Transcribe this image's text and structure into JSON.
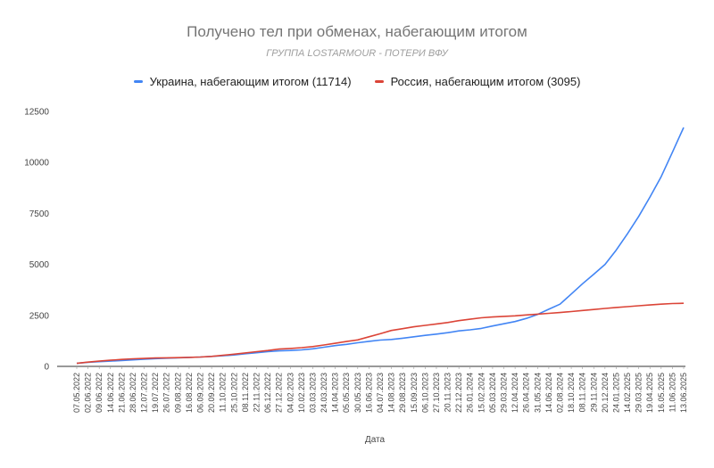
{
  "chart_data": {
    "type": "line",
    "title": "Получено тел при обменах, набегающим итогом",
    "subtitle": "ГРУППА LOSTARMOUR - ПОТЕРИ ВФУ",
    "xlabel": "Дата",
    "ylabel": "",
    "ylim": [
      0,
      12500
    ],
    "yticks": [
      0,
      2500,
      5000,
      7500,
      10000,
      12500
    ],
    "grid": false,
    "legend_position": "top",
    "x_tick_labels": [
      "07.05.2022",
      "02.06.2022",
      "09.06.2022",
      "14.06.2022",
      "21.06.2022",
      "28.06.2022",
      "12.07.2022",
      "19.07.2022",
      "26.07.2022",
      "09.08.2022",
      "16.08.2022",
      "06.09.2022",
      "20.09.2022",
      "11.10.2022",
      "25.10.2022",
      "08.11.2022",
      "22.11.2022",
      "06.12.2022",
      "27.12.2022",
      "04.02.2023",
      "10.02.2023",
      "03.03.2023",
      "24.03.2023",
      "14.04.2023",
      "05.05.2023",
      "30.05.2023",
      "16.06.2023",
      "04.07.2023",
      "14.08.2023",
      "29.08.2023",
      "15.09.2023",
      "06.10.2023",
      "27.10.2023",
      "20.11.2023",
      "22.12.2023",
      "26.01.2024",
      "15.02.2024",
      "05.03.2024",
      "29.03.2024",
      "12.04.2024",
      "26.04.2024",
      "31.05.2024",
      "14.06.2024",
      "02.08.2024",
      "18.10.2024",
      "08.11.2024",
      "29.11.2024",
      "20.12.2024",
      "24.01.2025",
      "14.02.2025",
      "29.03.2025",
      "19.04.2025",
      "16.05.2025",
      "11.06.2025",
      "13.06.2025"
    ],
    "series": [
      {
        "name": "Украина, набегающим итогом (11714)",
        "color": "#4285f4",
        "values": [
          150,
          200,
          230,
          260,
          290,
          320,
          350,
          380,
          400,
          420,
          440,
          460,
          490,
          520,
          560,
          620,
          670,
          720,
          760,
          780,
          810,
          860,
          940,
          1020,
          1080,
          1160,
          1230,
          1290,
          1320,
          1380,
          1450,
          1520,
          1580,
          1650,
          1740,
          1790,
          1860,
          1980,
          2090,
          2200,
          2350,
          2550,
          2800,
          3050,
          3550,
          4050,
          4520,
          5000,
          5700,
          6500,
          7350,
          8300,
          9300,
          10500,
          11714
        ]
      },
      {
        "name": "Россия, набегающим итогом (3095)",
        "color": "#db4437",
        "values": [
          150,
          210,
          260,
          300,
          340,
          370,
          390,
          410,
          420,
          430,
          440,
          460,
          490,
          540,
          600,
          660,
          720,
          780,
          850,
          880,
          920,
          970,
          1050,
          1130,
          1220,
          1300,
          1450,
          1600,
          1760,
          1850,
          1940,
          2010,
          2080,
          2150,
          2240,
          2310,
          2380,
          2420,
          2450,
          2480,
          2520,
          2560,
          2600,
          2640,
          2690,
          2740,
          2790,
          2840,
          2890,
          2930,
          2970,
          3010,
          3050,
          3080,
          3095
        ]
      }
    ]
  }
}
